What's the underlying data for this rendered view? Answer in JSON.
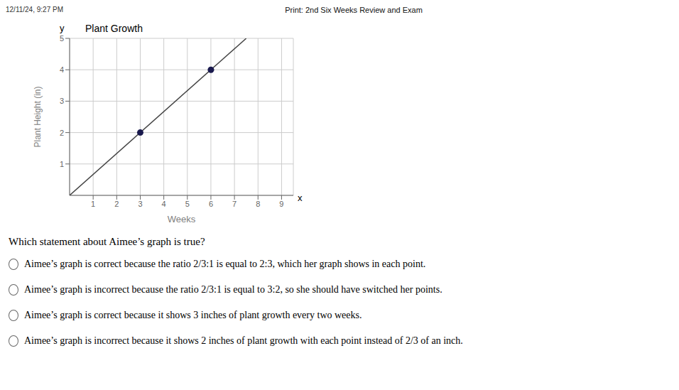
{
  "chart_data": {
    "type": "scatter",
    "title": "Plant Growth",
    "xlabel": "Weeks",
    "ylabel": "Plant Height (in)",
    "xlim": [
      0,
      9.5
    ],
    "ylim": [
      0,
      5
    ],
    "xticks": [
      1,
      2,
      3,
      4,
      5,
      6,
      7,
      8,
      9
    ],
    "yticks": [
      1,
      2,
      3,
      4,
      5
    ],
    "grid": true,
    "series": [
      {
        "type": "line",
        "color": "#444444",
        "x": [
          0,
          7.5
        ],
        "values": [
          0,
          5
        ]
      },
      {
        "type": "scatter",
        "color": "#1a1a4e",
        "marker": "circle",
        "x": [
          3,
          6
        ],
        "values": [
          2,
          4
        ]
      }
    ],
    "annotations": [
      "12/11/24, 9:27 PM",
      "Print: 2nd Six Weeks Review and Exam",
      "y",
      "x",
      "Which statement about Aimee’s graph is true?",
      "Aimee’s graph is correct because the ratio 2/3:1 is equal to 2:3, which her graph shows in each point.",
      "Aimee’s graph is incorrect because the ratio 2/3:1 is equal to 3:2, so she should have switched her points.",
      "Aimee’s graph is correct because it shows 3 inches of plant growth every two weeks.",
      "Aimee’s graph is incorrect because it shows 2 inches of plant growth with each point instead of 2/3 of an inch."
    ]
  }
}
